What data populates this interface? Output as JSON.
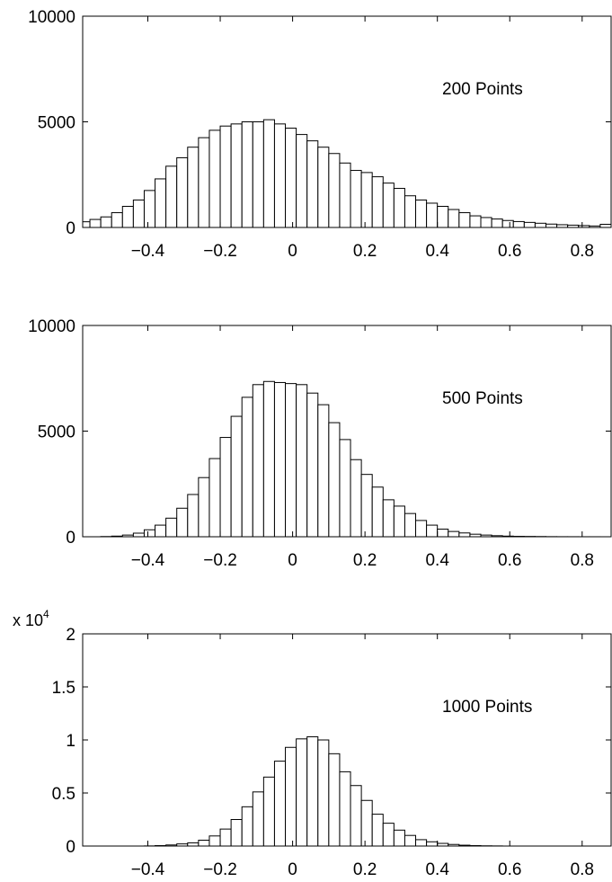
{
  "chart_data": [
    {
      "type": "bar",
      "annotation": "200 Points",
      "xlim": [
        -0.58,
        0.88
      ],
      "ylim": [
        0,
        10000
      ],
      "xticks": [
        -0.4,
        -0.2,
        0,
        0.2,
        0.4,
        0.6,
        0.8
      ],
      "xtick_labels": [
        "−0.4",
        "−0.2",
        "0",
        "0.2",
        "0.4",
        "0.6",
        "0.8"
      ],
      "yticks": [
        0,
        5000,
        10000
      ],
      "ytick_labels": [
        "0",
        "5000",
        "10000"
      ],
      "y_exponent_label": "",
      "bin_width": 0.03,
      "bin_centers": [
        -0.575,
        -0.545,
        -0.515,
        -0.485,
        -0.455,
        -0.425,
        -0.395,
        -0.365,
        -0.335,
        -0.305,
        -0.275,
        -0.245,
        -0.215,
        -0.185,
        -0.155,
        -0.125,
        -0.095,
        -0.065,
        -0.035,
        -0.005,
        0.025,
        0.055,
        0.085,
        0.115,
        0.145,
        0.175,
        0.205,
        0.235,
        0.265,
        0.295,
        0.325,
        0.355,
        0.385,
        0.415,
        0.445,
        0.475,
        0.505,
        0.535,
        0.565,
        0.595,
        0.625,
        0.655,
        0.685,
        0.715,
        0.745,
        0.775,
        0.805,
        0.835,
        0.865
      ],
      "values": [
        270,
        380,
        500,
        700,
        1000,
        1300,
        1750,
        2300,
        2900,
        3300,
        3800,
        4250,
        4600,
        4800,
        4900,
        5000,
        5000,
        5100,
        4900,
        4700,
        4400,
        4100,
        3800,
        3500,
        3050,
        2700,
        2600,
        2400,
        2100,
        1850,
        1500,
        1300,
        1150,
        1000,
        850,
        700,
        550,
        470,
        400,
        330,
        280,
        240,
        200,
        160,
        130,
        110,
        90,
        70,
        150
      ]
    },
    {
      "type": "bar",
      "annotation": "500 Points",
      "xlim": [
        -0.58,
        0.88
      ],
      "ylim": [
        0,
        10000
      ],
      "xticks": [
        -0.4,
        -0.2,
        0,
        0.2,
        0.4,
        0.6,
        0.8
      ],
      "xtick_labels": [
        "−0.4",
        "−0.2",
        "0",
        "0.2",
        "0.4",
        "0.6",
        "0.8"
      ],
      "yticks": [
        0,
        5000,
        10000
      ],
      "ytick_labels": [
        "0",
        "5000",
        "10000"
      ],
      "y_exponent_label": "",
      "bin_width": 0.03,
      "bin_centers": [
        -0.575,
        -0.545,
        -0.515,
        -0.485,
        -0.455,
        -0.425,
        -0.395,
        -0.365,
        -0.335,
        -0.305,
        -0.275,
        -0.245,
        -0.215,
        -0.185,
        -0.155,
        -0.125,
        -0.095,
        -0.065,
        -0.035,
        -0.005,
        0.025,
        0.055,
        0.085,
        0.115,
        0.145,
        0.175,
        0.205,
        0.235,
        0.265,
        0.295,
        0.325,
        0.355,
        0.385,
        0.415,
        0.445,
        0.475,
        0.505,
        0.535,
        0.565,
        0.595,
        0.625,
        0.655,
        0.685,
        0.715,
        0.745,
        0.775,
        0.805,
        0.835,
        0.865
      ],
      "values": [
        0,
        0,
        10,
        30,
        80,
        170,
        330,
        550,
        880,
        1350,
        2000,
        2800,
        3700,
        4700,
        5700,
        6600,
        7200,
        7350,
        7300,
        7250,
        7200,
        6800,
        6250,
        5400,
        4600,
        3650,
        2950,
        2350,
        1750,
        1450,
        1100,
        770,
        550,
        360,
        250,
        180,
        120,
        80,
        50,
        30,
        20,
        15,
        10,
        5,
        3,
        2,
        1,
        1,
        0
      ]
    },
    {
      "type": "bar",
      "annotation": "1000 Points",
      "xlim": [
        -0.58,
        0.88
      ],
      "ylim": [
        0,
        20000
      ],
      "xticks": [
        -0.4,
        -0.2,
        0,
        0.2,
        0.4,
        0.6,
        0.8
      ],
      "xtick_labels": [
        "−0.4",
        "−0.2",
        "0",
        "0.2",
        "0.4",
        "0.6",
        "0.8"
      ],
      "yticks": [
        0,
        5000,
        10000,
        15000,
        20000
      ],
      "ytick_labels": [
        "0",
        "0.5",
        "1",
        "1.5",
        "2"
      ],
      "y_exponent_label": "x 10",
      "y_exponent_power": "4",
      "bin_width": 0.03,
      "bin_centers": [
        -0.575,
        -0.545,
        -0.515,
        -0.485,
        -0.455,
        -0.425,
        -0.395,
        -0.365,
        -0.335,
        -0.305,
        -0.275,
        -0.245,
        -0.215,
        -0.185,
        -0.155,
        -0.125,
        -0.095,
        -0.065,
        -0.035,
        -0.005,
        0.025,
        0.055,
        0.085,
        0.115,
        0.145,
        0.175,
        0.205,
        0.235,
        0.265,
        0.295,
        0.325,
        0.355,
        0.385,
        0.415,
        0.445,
        0.475,
        0.505,
        0.535,
        0.565,
        0.595,
        0.625,
        0.655,
        0.685,
        0.715,
        0.745,
        0.775,
        0.805,
        0.835,
        0.865
      ],
      "values": [
        0,
        0,
        0,
        0,
        0,
        0,
        10,
        40,
        100,
        200,
        300,
        550,
        950,
        1600,
        2500,
        3700,
        5100,
        6500,
        8000,
        9300,
        10100,
        10300,
        10000,
        8700,
        7000,
        5700,
        4300,
        3000,
        2150,
        1500,
        1000,
        600,
        400,
        250,
        150,
        80,
        40,
        20,
        10,
        0,
        0,
        0,
        0,
        0,
        0,
        0,
        0,
        0,
        0
      ]
    }
  ]
}
